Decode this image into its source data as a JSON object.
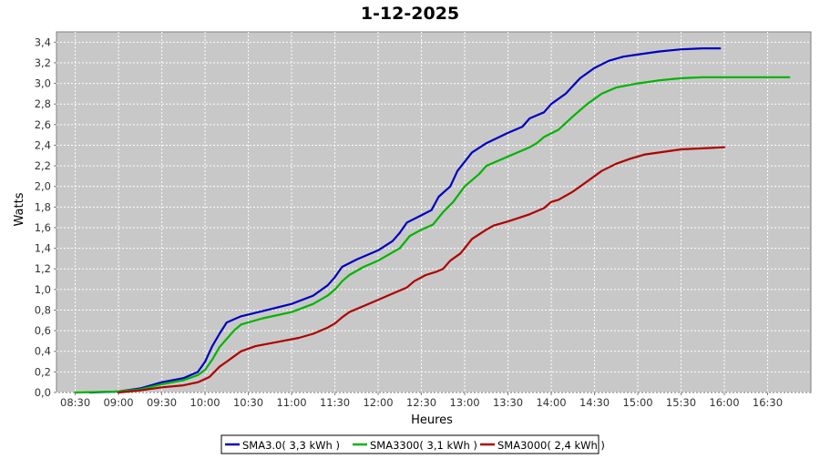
{
  "chart_data": {
    "type": "line",
    "title": "1-12-2025",
    "xlabel": "Heures",
    "ylabel": "Watts",
    "x_unit": "time (HH:MM)",
    "xlim": [
      "08:17",
      "17:00"
    ],
    "ylim": [
      0,
      3.5
    ],
    "x_ticks": [
      "08:30",
      "09:00",
      "09:30",
      "10:00",
      "10:30",
      "11:00",
      "11:30",
      "12:00",
      "12:30",
      "13:00",
      "13:30",
      "14:00",
      "14:30",
      "15:00",
      "15:30",
      "16:00",
      "16:30"
    ],
    "y_ticks": [
      "0,0",
      "0,2",
      "0,4",
      "0,6",
      "0,8",
      "1,0",
      "1,2",
      "1,4",
      "1,6",
      "1,8",
      "2,0",
      "2,2",
      "2,4",
      "2,6",
      "2,8",
      "3,0",
      "3,2",
      "3,4"
    ],
    "grid": true,
    "legend_position": "bottom",
    "series": [
      {
        "name": "SMA3.0( 3,3 kWh )",
        "color": "#0000c0",
        "points": [
          [
            "08:40",
            0.0
          ],
          [
            "09:00",
            0.01
          ],
          [
            "09:15",
            0.04
          ],
          [
            "09:30",
            0.1
          ],
          [
            "09:45",
            0.14
          ],
          [
            "09:55",
            0.2
          ],
          [
            "10:00",
            0.3
          ],
          [
            "10:05",
            0.45
          ],
          [
            "10:10",
            0.57
          ],
          [
            "10:15",
            0.68
          ],
          [
            "10:25",
            0.74
          ],
          [
            "10:40",
            0.79
          ],
          [
            "11:00",
            0.86
          ],
          [
            "11:15",
            0.94
          ],
          [
            "11:25",
            1.04
          ],
          [
            "11:30",
            1.12
          ],
          [
            "11:35",
            1.22
          ],
          [
            "11:45",
            1.29
          ],
          [
            "12:00",
            1.38
          ],
          [
            "12:10",
            1.47
          ],
          [
            "12:15",
            1.55
          ],
          [
            "12:20",
            1.65
          ],
          [
            "12:30",
            1.72
          ],
          [
            "12:37",
            1.77
          ],
          [
            "12:42",
            1.9
          ],
          [
            "12:50",
            2.0
          ],
          [
            "12:55",
            2.15
          ],
          [
            "13:05",
            2.33
          ],
          [
            "13:15",
            2.42
          ],
          [
            "13:30",
            2.52
          ],
          [
            "13:40",
            2.58
          ],
          [
            "13:45",
            2.66
          ],
          [
            "13:55",
            2.72
          ],
          [
            "14:00",
            2.8
          ],
          [
            "14:10",
            2.9
          ],
          [
            "14:20",
            3.05
          ],
          [
            "14:30",
            3.15
          ],
          [
            "14:40",
            3.22
          ],
          [
            "14:50",
            3.26
          ],
          [
            "15:00",
            3.28
          ],
          [
            "15:15",
            3.31
          ],
          [
            "15:30",
            3.33
          ],
          [
            "15:45",
            3.34
          ],
          [
            "15:57",
            3.34
          ]
        ]
      },
      {
        "name": "SMA3300( 3,1 kWh )",
        "color": "#00b400",
        "points": [
          [
            "08:30",
            0.0
          ],
          [
            "09:00",
            0.01
          ],
          [
            "09:15",
            0.03
          ],
          [
            "09:30",
            0.08
          ],
          [
            "09:45",
            0.12
          ],
          [
            "09:55",
            0.17
          ],
          [
            "10:00",
            0.22
          ],
          [
            "10:05",
            0.32
          ],
          [
            "10:10",
            0.44
          ],
          [
            "10:20",
            0.6
          ],
          [
            "10:25",
            0.66
          ],
          [
            "10:40",
            0.72
          ],
          [
            "11:00",
            0.78
          ],
          [
            "11:15",
            0.86
          ],
          [
            "11:25",
            0.94
          ],
          [
            "11:30",
            1.0
          ],
          [
            "11:35",
            1.08
          ],
          [
            "11:40",
            1.14
          ],
          [
            "11:50",
            1.22
          ],
          [
            "12:00",
            1.28
          ],
          [
            "12:10",
            1.36
          ],
          [
            "12:15",
            1.4
          ],
          [
            "12:22",
            1.52
          ],
          [
            "12:30",
            1.58
          ],
          [
            "12:38",
            1.63
          ],
          [
            "12:45",
            1.75
          ],
          [
            "12:52",
            1.85
          ],
          [
            "13:00",
            2.0
          ],
          [
            "13:10",
            2.12
          ],
          [
            "13:15",
            2.2
          ],
          [
            "13:30",
            2.29
          ],
          [
            "13:45",
            2.38
          ],
          [
            "13:50",
            2.42
          ],
          [
            "13:55",
            2.48
          ],
          [
            "14:05",
            2.55
          ],
          [
            "14:15",
            2.68
          ],
          [
            "14:25",
            2.8
          ],
          [
            "14:35",
            2.9
          ],
          [
            "14:45",
            2.96
          ],
          [
            "15:00",
            3.0
          ],
          [
            "15:15",
            3.03
          ],
          [
            "15:30",
            3.05
          ],
          [
            "15:45",
            3.06
          ],
          [
            "16:00",
            3.06
          ],
          [
            "16:45",
            3.06
          ]
        ]
      },
      {
        "name": "SMA3000( 2,4 kWh )",
        "color": "#b00000",
        "points": [
          [
            "09:00",
            0.0
          ],
          [
            "09:15",
            0.02
          ],
          [
            "09:30",
            0.05
          ],
          [
            "09:45",
            0.07
          ],
          [
            "09:55",
            0.1
          ],
          [
            "10:03",
            0.15
          ],
          [
            "10:10",
            0.25
          ],
          [
            "10:15",
            0.3
          ],
          [
            "10:25",
            0.4
          ],
          [
            "10:35",
            0.45
          ],
          [
            "10:50",
            0.49
          ],
          [
            "11:05",
            0.53
          ],
          [
            "11:15",
            0.57
          ],
          [
            "11:25",
            0.63
          ],
          [
            "11:30",
            0.67
          ],
          [
            "11:35",
            0.73
          ],
          [
            "11:40",
            0.78
          ],
          [
            "11:50",
            0.84
          ],
          [
            "12:00",
            0.9
          ],
          [
            "12:10",
            0.96
          ],
          [
            "12:20",
            1.02
          ],
          [
            "12:25",
            1.08
          ],
          [
            "12:33",
            1.14
          ],
          [
            "12:40",
            1.17
          ],
          [
            "12:45",
            1.2
          ],
          [
            "12:50",
            1.28
          ],
          [
            "12:57",
            1.35
          ],
          [
            "13:00",
            1.4
          ],
          [
            "13:05",
            1.49
          ],
          [
            "13:15",
            1.58
          ],
          [
            "13:20",
            1.62
          ],
          [
            "13:30",
            1.66
          ],
          [
            "13:45",
            1.73
          ],
          [
            "13:55",
            1.79
          ],
          [
            "14:00",
            1.85
          ],
          [
            "14:05",
            1.87
          ],
          [
            "14:15",
            1.95
          ],
          [
            "14:25",
            2.05
          ],
          [
            "14:35",
            2.15
          ],
          [
            "14:45",
            2.22
          ],
          [
            "14:55",
            2.27
          ],
          [
            "15:05",
            2.31
          ],
          [
            "15:15",
            2.33
          ],
          [
            "15:30",
            2.36
          ],
          [
            "15:45",
            2.37
          ],
          [
            "16:00",
            2.38
          ]
        ]
      }
    ]
  }
}
